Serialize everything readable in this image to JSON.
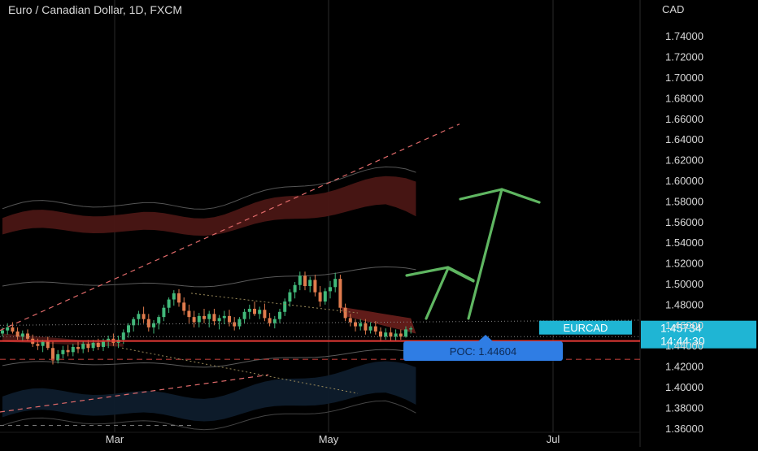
{
  "header": {
    "title": "Euro / Canadian Dollar, 1D, FXCM",
    "currency": "CAD"
  },
  "colors": {
    "background": "#000000",
    "axis_text": "#d7d7d7",
    "up_candle": "#41b97a",
    "down_candle": "#e07b4d",
    "support_line": "#e53935",
    "trend_line": "#e06a6a",
    "upper_band": "#4a1614",
    "lower_band": "#0e1c2c",
    "arrow": "#5fb661",
    "price_label": "#1fb5d4",
    "poc_label": "#2f7de4"
  },
  "labels": {
    "symbol": "EURCAD",
    "price": "1.45734",
    "countdown": "14:44:30",
    "poc": "POC: 1.44604"
  },
  "chart_data": {
    "type": "candlestick",
    "title": "Euro / Canadian Dollar, 1D, FXCM",
    "ylabel": "CAD",
    "ylim": [
      1.35,
      1.75
    ],
    "x_ticks": [
      "Mar",
      "May",
      "Jul"
    ],
    "y_ticks": [
      "1.74000",
      "1.72000",
      "1.70000",
      "1.68000",
      "1.66000",
      "1.64000",
      "1.62000",
      "1.60000",
      "1.58000",
      "1.56000",
      "1.54000",
      "1.52000",
      "1.50000",
      "1.48000",
      "1.46000",
      "1.44000",
      "1.42000",
      "1.40000",
      "1.38000",
      "1.36000"
    ],
    "grid": true,
    "last_price": 1.45734,
    "poc": 1.44604,
    "candles": [
      [
        1.452,
        1.458,
        1.449,
        1.455
      ],
      [
        1.455,
        1.462,
        1.451,
        1.458
      ],
      [
        1.458,
        1.463,
        1.452,
        1.454
      ],
      [
        1.454,
        1.458,
        1.446,
        1.449
      ],
      [
        1.449,
        1.455,
        1.444,
        1.452
      ],
      [
        1.452,
        1.456,
        1.445,
        1.447
      ],
      [
        1.447,
        1.451,
        1.439,
        1.442
      ],
      [
        1.442,
        1.447,
        1.436,
        1.44
      ],
      [
        1.44,
        1.446,
        1.434,
        1.444
      ],
      [
        1.444,
        1.449,
        1.436,
        1.438
      ],
      [
        1.438,
        1.444,
        1.422,
        1.426
      ],
      [
        1.426,
        1.436,
        1.423,
        1.432
      ],
      [
        1.432,
        1.44,
        1.428,
        1.436
      ],
      [
        1.436,
        1.441,
        1.43,
        1.434
      ],
      [
        1.434,
        1.442,
        1.43,
        1.439
      ],
      [
        1.439,
        1.444,
        1.433,
        1.437
      ],
      [
        1.437,
        1.445,
        1.433,
        1.442
      ],
      [
        1.442,
        1.446,
        1.434,
        1.438
      ],
      [
        1.438,
        1.446,
        1.435,
        1.443
      ],
      [
        1.443,
        1.447,
        1.436,
        1.439
      ],
      [
        1.439,
        1.447,
        1.435,
        1.444
      ],
      [
        1.444,
        1.45,
        1.438,
        1.447
      ],
      [
        1.447,
        1.452,
        1.44,
        1.443
      ],
      [
        1.443,
        1.45,
        1.438,
        1.446
      ],
      [
        1.446,
        1.456,
        1.442,
        1.453
      ],
      [
        1.453,
        1.462,
        1.448,
        1.46
      ],
      [
        1.46,
        1.468,
        1.454,
        1.466
      ],
      [
        1.466,
        1.474,
        1.46,
        1.471
      ],
      [
        1.471,
        1.478,
        1.462,
        1.466
      ],
      [
        1.466,
        1.471,
        1.454,
        1.458
      ],
      [
        1.458,
        1.465,
        1.452,
        1.462
      ],
      [
        1.462,
        1.47,
        1.456,
        1.468
      ],
      [
        1.468,
        1.48,
        1.464,
        1.477
      ],
      [
        1.477,
        1.487,
        1.472,
        1.485
      ],
      [
        1.485,
        1.494,
        1.479,
        1.491
      ],
      [
        1.491,
        1.495,
        1.478,
        1.482
      ],
      [
        1.482,
        1.487,
        1.47,
        1.474
      ],
      [
        1.474,
        1.48,
        1.462,
        1.468
      ],
      [
        1.468,
        1.474,
        1.458,
        1.463
      ],
      [
        1.463,
        1.472,
        1.458,
        1.469
      ],
      [
        1.469,
        1.476,
        1.462,
        1.466
      ],
      [
        1.466,
        1.474,
        1.458,
        1.471
      ],
      [
        1.471,
        1.476,
        1.46,
        1.464
      ],
      [
        1.464,
        1.47,
        1.456,
        1.467
      ],
      [
        1.467,
        1.474,
        1.461,
        1.469
      ],
      [
        1.469,
        1.475,
        1.459,
        1.463
      ],
      [
        1.463,
        1.468,
        1.455,
        1.459
      ],
      [
        1.459,
        1.468,
        1.456,
        1.466
      ],
      [
        1.466,
        1.476,
        1.462,
        1.473
      ],
      [
        1.473,
        1.48,
        1.466,
        1.476
      ],
      [
        1.476,
        1.483,
        1.469,
        1.471
      ],
      [
        1.471,
        1.478,
        1.466,
        1.475
      ],
      [
        1.475,
        1.481,
        1.464,
        1.467
      ],
      [
        1.467,
        1.472,
        1.459,
        1.462
      ],
      [
        1.462,
        1.469,
        1.457,
        1.466
      ],
      [
        1.466,
        1.476,
        1.462,
        1.473
      ],
      [
        1.473,
        1.486,
        1.469,
        1.483
      ],
      [
        1.483,
        1.495,
        1.478,
        1.492
      ],
      [
        1.492,
        1.502,
        1.486,
        1.499
      ],
      [
        1.499,
        1.512,
        1.494,
        1.508
      ],
      [
        1.508,
        1.512,
        1.494,
        1.498
      ],
      [
        1.498,
        1.507,
        1.492,
        1.504
      ],
      [
        1.504,
        1.509,
        1.488,
        1.492
      ],
      [
        1.492,
        1.498,
        1.478,
        1.483
      ],
      [
        1.483,
        1.496,
        1.48,
        1.493
      ],
      [
        1.493,
        1.503,
        1.486,
        1.497
      ],
      [
        1.497,
        1.511,
        1.492,
        1.505
      ],
      [
        1.505,
        1.509,
        1.472,
        1.477
      ],
      [
        1.477,
        1.481,
        1.464,
        1.467
      ],
      [
        1.467,
        1.471,
        1.459,
        1.463
      ],
      [
        1.463,
        1.466,
        1.454,
        1.459
      ],
      [
        1.459,
        1.466,
        1.455,
        1.462
      ],
      [
        1.462,
        1.466,
        1.451,
        1.455
      ],
      [
        1.455,
        1.463,
        1.452,
        1.459
      ],
      [
        1.459,
        1.464,
        1.451,
        1.454
      ],
      [
        1.454,
        1.458,
        1.444,
        1.449
      ],
      [
        1.449,
        1.457,
        1.446,
        1.453
      ],
      [
        1.453,
        1.458,
        1.445,
        1.449
      ],
      [
        1.449,
        1.456,
        1.445,
        1.452
      ],
      [
        1.452,
        1.456,
        1.446,
        1.449
      ],
      [
        1.449,
        1.459,
        1.448,
        1.456
      ],
      [
        1.456,
        1.459,
        1.452,
        1.457
      ]
    ]
  }
}
